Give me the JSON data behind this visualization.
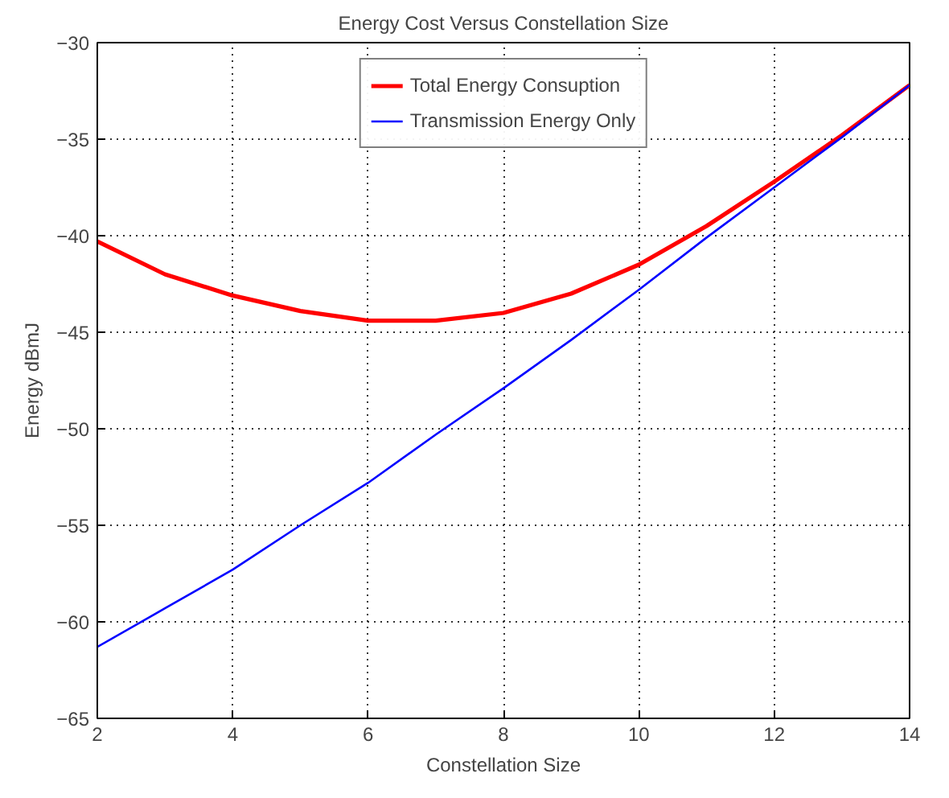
{
  "chart_data": {
    "type": "line",
    "title": "Energy Cost Versus Constellation Size",
    "xlabel": "Constellation Size",
    "ylabel": "Energy dBmJ",
    "x": [
      2,
      3,
      4,
      5,
      6,
      7,
      8,
      9,
      10,
      11,
      12,
      13,
      14
    ],
    "series": [
      {
        "name": "Total Energy Consuption",
        "color": "#ff0000",
        "values": [
          -40.3,
          -42.0,
          -43.1,
          -43.9,
          -44.4,
          -44.4,
          -44.0,
          -43.0,
          -41.5,
          -39.5,
          -37.2,
          -34.8,
          -32.2
        ]
      },
      {
        "name": "Transmission Energy Only",
        "color": "#0000ff",
        "values": [
          -61.3,
          -59.3,
          -57.3,
          -55.0,
          -52.8,
          -50.3,
          -47.9,
          -45.4,
          -42.8,
          -40.1,
          -37.5,
          -34.9,
          -32.2
        ]
      }
    ],
    "xlim": [
      2,
      14
    ],
    "xticks": [
      2,
      4,
      6,
      8,
      10,
      12,
      14
    ],
    "ylim": [
      -65,
      -30
    ],
    "yticks": [
      -65,
      -60,
      -55,
      -50,
      -45,
      -40,
      -35,
      -30
    ],
    "grid": true,
    "legend": "top",
    "marker": "none",
    "line_style": "solid"
  }
}
